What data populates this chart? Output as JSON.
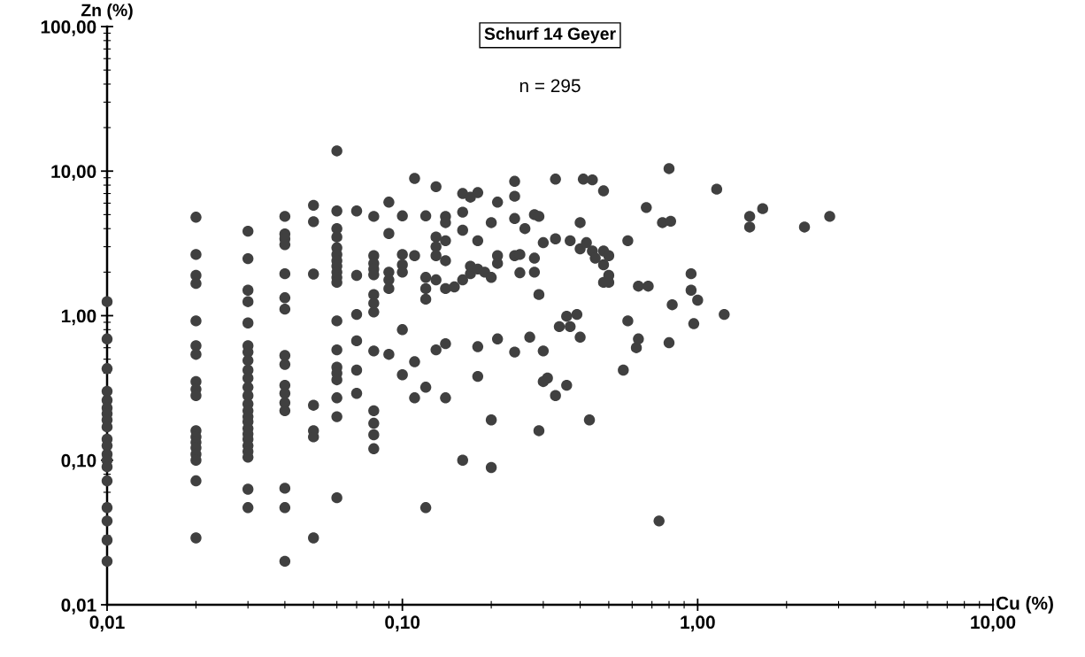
{
  "chart_data": {
    "type": "scatter",
    "title": "Schurf 14 Geyer",
    "subtitle": "n = 295",
    "xlabel": "Cu (%)",
    "ylabel": "Zn (%)",
    "log": "xy",
    "grid": false,
    "marker": "circle",
    "color": "#404040",
    "xlim": [
      0.01,
      10
    ],
    "ylim": [
      0.01,
      100
    ],
    "xticks": [
      {
        "value": 0.01,
        "label": "0,01"
      },
      {
        "value": 0.1,
        "label": "0,10"
      },
      {
        "value": 1,
        "label": "1,00"
      },
      {
        "value": 10,
        "label": "10,00"
      }
    ],
    "yticks": [
      {
        "value": 0.01,
        "label": "0,01"
      },
      {
        "value": 0.1,
        "label": "0,10"
      },
      {
        "value": 1,
        "label": "1,00"
      },
      {
        "value": 10,
        "label": "10,00"
      },
      {
        "value": 100,
        "label": "100,00"
      }
    ],
    "x": [
      0.01,
      0.01,
      0.01,
      0.01,
      0.01,
      0.01,
      0.01,
      0.01,
      0.01,
      0.01,
      0.01,
      0.01,
      0.01,
      0.01,
      0.01,
      0.01,
      0.01,
      0.01,
      0.01,
      0.02,
      0.02,
      0.02,
      0.02,
      0.02,
      0.02,
      0.02,
      0.02,
      0.02,
      0.02,
      0.02,
      0.02,
      0.02,
      0.02,
      0.02,
      0.02,
      0.02,
      0.02,
      0.03,
      0.03,
      0.03,
      0.03,
      0.03,
      0.03,
      0.03,
      0.03,
      0.03,
      0.03,
      0.03,
      0.03,
      0.03,
      0.03,
      0.03,
      0.03,
      0.03,
      0.03,
      0.03,
      0.03,
      0.03,
      0.03,
      0.03,
      0.03,
      0.04,
      0.04,
      0.04,
      0.04,
      0.04,
      0.04,
      0.04,
      0.04,
      0.04,
      0.04,
      0.04,
      0.04,
      0.04,
      0.04,
      0.04,
      0.04,
      0.05,
      0.05,
      0.05,
      0.05,
      0.05,
      0.05,
      0.05,
      0.06,
      0.06,
      0.06,
      0.06,
      0.06,
      0.06,
      0.06,
      0.06,
      0.06,
      0.06,
      0.06,
      0.06,
      0.06,
      0.06,
      0.06,
      0.06,
      0.06,
      0.06,
      0.06,
      0.07,
      0.07,
      0.07,
      0.07,
      0.07,
      0.07,
      0.08,
      0.08,
      0.08,
      0.08,
      0.08,
      0.08,
      0.08,
      0.08,
      0.08,
      0.08,
      0.08,
      0.08,
      0.08,
      0.09,
      0.09,
      0.09,
      0.09,
      0.09,
      0.09,
      0.1,
      0.1,
      0.1,
      0.1,
      0.1,
      0.1,
      0.11,
      0.11,
      0.11,
      0.11,
      0.12,
      0.12,
      0.12,
      0.12,
      0.12,
      0.12,
      0.13,
      0.13,
      0.13,
      0.13,
      0.13,
      0.13,
      0.14,
      0.14,
      0.14,
      0.14,
      0.14,
      0.14,
      0.14,
      0.15,
      0.16,
      0.16,
      0.16,
      0.16,
      0.16,
      0.17,
      0.17,
      0.17,
      0.18,
      0.18,
      0.18,
      0.18,
      0.18,
      0.19,
      0.2,
      0.2,
      0.2,
      0.2,
      0.21,
      0.21,
      0.21,
      0.21,
      0.24,
      0.24,
      0.24,
      0.24,
      0.24,
      0.25,
      0.25,
      0.26,
      0.28,
      0.28,
      0.28,
      0.27,
      0.29,
      0.29,
      0.29,
      0.3,
      0.3,
      0.3,
      0.31,
      0.33,
      0.33,
      0.33,
      0.34,
      0.36,
      0.36,
      0.37,
      0.37,
      0.39,
      0.4,
      0.4,
      0.4,
      0.41,
      0.42,
      0.44,
      0.44,
      0.43,
      0.45,
      0.48,
      0.48,
      0.48,
      0.48,
      0.5,
      0.5,
      0.5,
      0.56,
      0.58,
      0.58,
      0.62,
      0.63,
      0.63,
      0.67,
      0.68,
      0.74,
      0.76,
      0.8,
      0.81,
      0.8,
      0.82,
      0.95,
      0.95,
      1.0,
      0.97,
      1.16,
      1.23,
      1.5,
      1.5,
      1.66,
      2.3,
      2.8
    ],
    "values": [
      1.25,
      0.69,
      0.43,
      0.3,
      0.26,
      0.23,
      0.21,
      0.19,
      0.17,
      0.14,
      0.126,
      0.11,
      0.1,
      0.09,
      0.072,
      0.047,
      0.038,
      0.028,
      0.02,
      4.8,
      2.65,
      1.9,
      1.67,
      0.92,
      0.62,
      0.54,
      0.35,
      0.31,
      0.28,
      0.16,
      0.145,
      0.133,
      0.122,
      0.11,
      0.1,
      0.072,
      0.029,
      3.84,
      2.48,
      1.5,
      1.25,
      0.89,
      0.62,
      0.56,
      0.49,
      0.42,
      0.37,
      0.32,
      0.28,
      0.245,
      0.22,
      0.2,
      0.185,
      0.166,
      0.152,
      0.14,
      0.126,
      0.115,
      0.105,
      0.063,
      0.047,
      4.86,
      3.68,
      3.4,
      3.1,
      1.95,
      1.33,
      1.11,
      0.53,
      0.46,
      0.33,
      0.29,
      0.25,
      0.22,
      0.064,
      0.047,
      0.02,
      5.8,
      4.47,
      1.94,
      0.24,
      0.16,
      0.145,
      0.029,
      13.8,
      5.3,
      4.0,
      3.5,
      2.95,
      2.65,
      2.4,
      2.2,
      2.0,
      1.84,
      1.7,
      0.92,
      0.58,
      0.44,
      0.4,
      0.36,
      0.27,
      0.2,
      0.055,
      5.3,
      1.9,
      1.02,
      0.67,
      0.42,
      0.29,
      4.86,
      2.6,
      2.3,
      2.1,
      1.92,
      1.4,
      1.22,
      1.06,
      0.57,
      0.22,
      0.18,
      0.15,
      0.12,
      6.1,
      3.7,
      2.0,
      1.77,
      1.54,
      0.54,
      4.9,
      2.65,
      2.25,
      2.0,
      0.8,
      0.39,
      8.9,
      2.6,
      0.48,
      0.27,
      4.9,
      1.84,
      1.54,
      1.3,
      0.32,
      0.047,
      7.8,
      3.5,
      3.0,
      2.6,
      1.77,
      0.58,
      4.86,
      4.4,
      3.3,
      2.4,
      1.54,
      0.64,
      0.27,
      1.58,
      7.0,
      5.2,
      3.9,
      1.77,
      0.1,
      6.6,
      1.95,
      2.2,
      7.1,
      3.3,
      2.1,
      0.61,
      0.38,
      2.0,
      4.4,
      0.19,
      0.089,
      1.84,
      6.1,
      2.6,
      2.3,
      0.69,
      8.5,
      6.7,
      4.7,
      2.6,
      0.56,
      2.65,
      1.98,
      4.0,
      5.0,
      2.5,
      2.0,
      0.71,
      1.4,
      0.16,
      4.86,
      3.2,
      0.57,
      0.35,
      0.37,
      8.8,
      3.4,
      0.28,
      0.84,
      0.99,
      0.33,
      3.3,
      0.84,
      1.02,
      4.4,
      2.9,
      0.71,
      8.8,
      3.2,
      8.7,
      2.8,
      0.19,
      2.5,
      2.25,
      2.8,
      7.3,
      1.7,
      2.6,
      1.9,
      1.7,
      0.42,
      3.3,
      0.92,
      0.6,
      1.6,
      0.69,
      5.6,
      1.6,
      0.038,
      4.4,
      10.4,
      4.5,
      0.65,
      1.19,
      1.95,
      1.5,
      1.28,
      0.88,
      7.5,
      1.02,
      4.1,
      4.86,
      5.5,
      4.1,
      4.86
    ]
  }
}
